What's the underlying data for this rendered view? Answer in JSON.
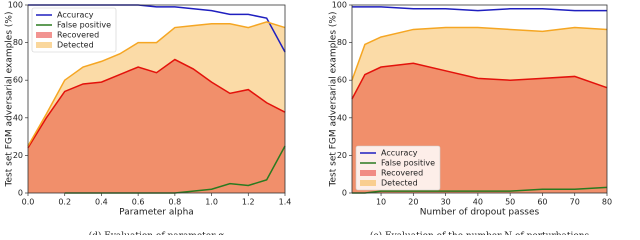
{
  "chart_data": [
    {
      "type": "line",
      "xlabel": "Parameter alpha",
      "ylabel": "Test set FGM adversarial examples (%)",
      "caption": "(d) Evaluation of parameter α",
      "x": [
        0,
        0.1,
        0.2,
        0.3,
        0.4,
        0.5,
        0.6,
        0.7,
        0.8,
        0.9,
        1.0,
        1.1,
        1.2,
        1.3,
        1.4
      ],
      "series": [
        {
          "name": "Accuracy",
          "color": "#1f1fbf",
          "area": false,
          "values": [
            100,
            100,
            100,
            100,
            100,
            100,
            100,
            99,
            99,
            98,
            97,
            95,
            95,
            93,
            75
          ]
        },
        {
          "name": "False positive",
          "color": "#2a7a1f",
          "area": false,
          "values": [
            null,
            null,
            0,
            0,
            0,
            0,
            0,
            0,
            0,
            1,
            2,
            5,
            4,
            7,
            25
          ]
        },
        {
          "name": "Recovered",
          "color": "#e3120b",
          "area": true,
          "values": [
            24,
            40,
            54,
            58,
            59,
            63,
            67,
            64,
            71,
            66,
            59,
            53,
            55,
            48,
            43
          ]
        },
        {
          "name": "Detected",
          "color": "#f5a623",
          "area": true,
          "values": [
            25,
            42,
            60,
            67,
            70,
            74,
            80,
            80,
            88,
            89,
            90,
            90,
            88,
            91,
            88
          ]
        }
      ],
      "xlim": [
        0,
        1.4
      ],
      "xticks": [
        {
          "value": 0,
          "label": "0.0"
        },
        0.2,
        0.4,
        0.6,
        0.8,
        {
          "value": 1,
          "label": "1.0"
        },
        1.2,
        1.4
      ],
      "ylim": [
        0,
        100
      ],
      "yticks": [
        0,
        20,
        40,
        60,
        80,
        100
      ],
      "legend": "upper left"
    },
    {
      "type": "line",
      "xlabel": "Number of dropout passes",
      "ylabel": "Test set FGM adversarial examples (%)",
      "caption": "(e) Evaluation of the number N of perturbations",
      "x": [
        1,
        5,
        10,
        20,
        30,
        40,
        50,
        60,
        70,
        80
      ],
      "series": [
        {
          "name": "Accuracy",
          "color": "#1f1fbf",
          "area": false,
          "values": [
            99,
            99,
            99,
            98,
            98,
            97,
            98,
            98,
            97,
            97
          ]
        },
        {
          "name": "False positive",
          "color": "#2a7a1f",
          "area": false,
          "values": [
            0,
            0,
            1,
            1,
            1,
            1,
            1,
            2,
            2,
            3
          ]
        },
        {
          "name": "Recovered",
          "color": "#e3120b",
          "area": true,
          "values": [
            50,
            63,
            67,
            69,
            65,
            61,
            60,
            61,
            62,
            56
          ]
        },
        {
          "name": "Detected",
          "color": "#f5a623",
          "area": true,
          "values": [
            60,
            79,
            83,
            87,
            88,
            88,
            87,
            86,
            88,
            87
          ]
        }
      ],
      "xlim": [
        1,
        80
      ],
      "xticks": [
        10,
        20,
        30,
        40,
        50,
        60,
        70,
        80
      ],
      "ylim": [
        0,
        100
      ],
      "yticks": [
        0,
        20,
        40,
        60,
        80,
        100
      ],
      "legend": "lower left"
    }
  ]
}
